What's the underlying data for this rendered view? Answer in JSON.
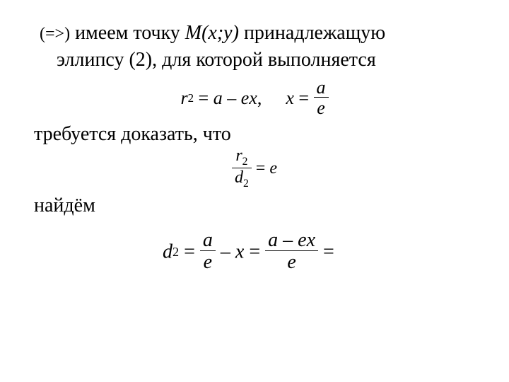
{
  "colors": {
    "text": "#000000",
    "background": "#ffffff"
  },
  "typography": {
    "family": "Times New Roman",
    "body_size_pt": 28,
    "small_size_pt": 24,
    "eq_center_size_pt": 26,
    "eq_center2_size_pt": 24,
    "eq_left_size_pt": 28
  },
  "line1": {
    "implication": "(=>)",
    "t1": " имеем точку ",
    "point": "M(x;y)",
    "t2": " принадлежащую"
  },
  "line2": {
    "t1": "эллипсу (2), для которой выполняется"
  },
  "eq1": {
    "r": "r",
    "r_sub": "2",
    "eq": " = ",
    "a": "a",
    "minus": " – ",
    "e": "e",
    "x": "x",
    "comma": ",",
    "x2": "x",
    "eq2": " = ",
    "frac_num": "a",
    "frac_den": "e"
  },
  "text_prove": "требуется доказать, что",
  "eq2": {
    "num_r": "r",
    "num_sub": "2",
    "den_d": "d",
    "den_sub": "2",
    "eq": " = ",
    "rhs": "e"
  },
  "text_find": "найдём",
  "eq3": {
    "d": "d",
    "d_sub": "2",
    "eq": " = ",
    "frac1_num": "a",
    "frac1_den": "e",
    "minus": " – ",
    "x": "x",
    "eq2": " = ",
    "frac2_num_a": "a",
    "frac2_num_minus": " – ",
    "frac2_num_e": "e",
    "frac2_num_x": "x",
    "frac2_den": "e",
    "eq3": " ="
  }
}
